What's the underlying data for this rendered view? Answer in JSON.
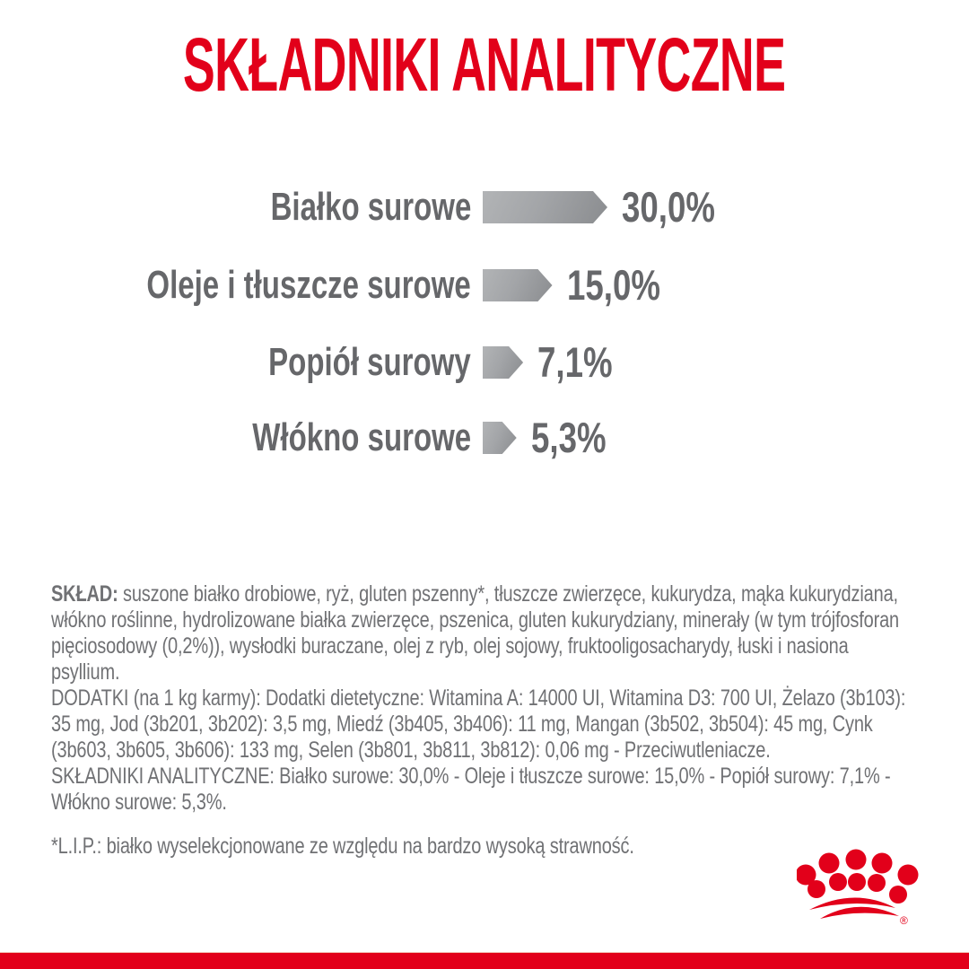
{
  "title": "SKŁADNIKI ANALITYCZNE",
  "colors": {
    "brand_red": "#e2001a",
    "body_text_gray": "#707174",
    "chart_text_gray": "#66676a",
    "bar_gradient_light": "#b2b4b6",
    "bar_gradient_dark": "#8a8c8f"
  },
  "chart_data": {
    "type": "bar",
    "orientation": "horizontal",
    "title": "SKŁADNIKI ANALITYCZNE",
    "unit": "%",
    "categories": [
      "Białko surowe",
      "Oleje i tłuszcze surowe",
      "Popiół surowy",
      "Włókno surowe"
    ],
    "values": [
      30.0,
      15.0,
      7.1,
      5.3
    ],
    "value_labels": [
      "30,0%",
      "15,0%",
      "7,1%",
      "5,3%"
    ],
    "xlim": [
      0,
      32
    ],
    "grid": false,
    "legend": false,
    "bar_style": "right-pointing gray gradient arrow"
  },
  "composition": {
    "label": "SKŁAD:",
    "text": " suszone białko drobiowe, ryż, gluten pszenny*, tłuszcze zwierzęce, kukurydza, mąka kukurydziana, włókno roślinne, hydrolizowane białka zwierzęce, pszenica, gluten kukurydziany, minerały (w tym trójfosforan pięciosodowy (0,2%)), wysłodki buraczane, olej z ryb, olej sojowy, fruktooligosacharydy, łuski i nasiona psyllium."
  },
  "additives": "DODATKI (na 1 kg karmy): Dodatki dietetyczne: Witamina A: 14000 UI, Witamina D3: 700 UI, Żelazo (3b103): 35 mg, Jod (3b201, 3b202): 3,5 mg, Miedź (3b405, 3b406): 11 mg, Mangan (3b502, 3b504): 45 mg, Cynk (3b603, 3b605, 3b606): 133 mg, Selen (3b801, 3b811, 3b812): 0,06 mg - Przeciwutleniacze.",
  "analytical_line": "SKŁADNIKI ANALITYCZNE: Białko surowe: 30,0% - Oleje i tłuszcze surowe: 15,0% - Popiół surowy: 7,1% - Włókno surowe: 5,3%.",
  "footnote": "*L.I.P.: białko wyselekcjonowane ze względu na bardzo wysoką strawność.",
  "logo": {
    "name": "royal-canin-crown",
    "registered_mark": "®"
  }
}
